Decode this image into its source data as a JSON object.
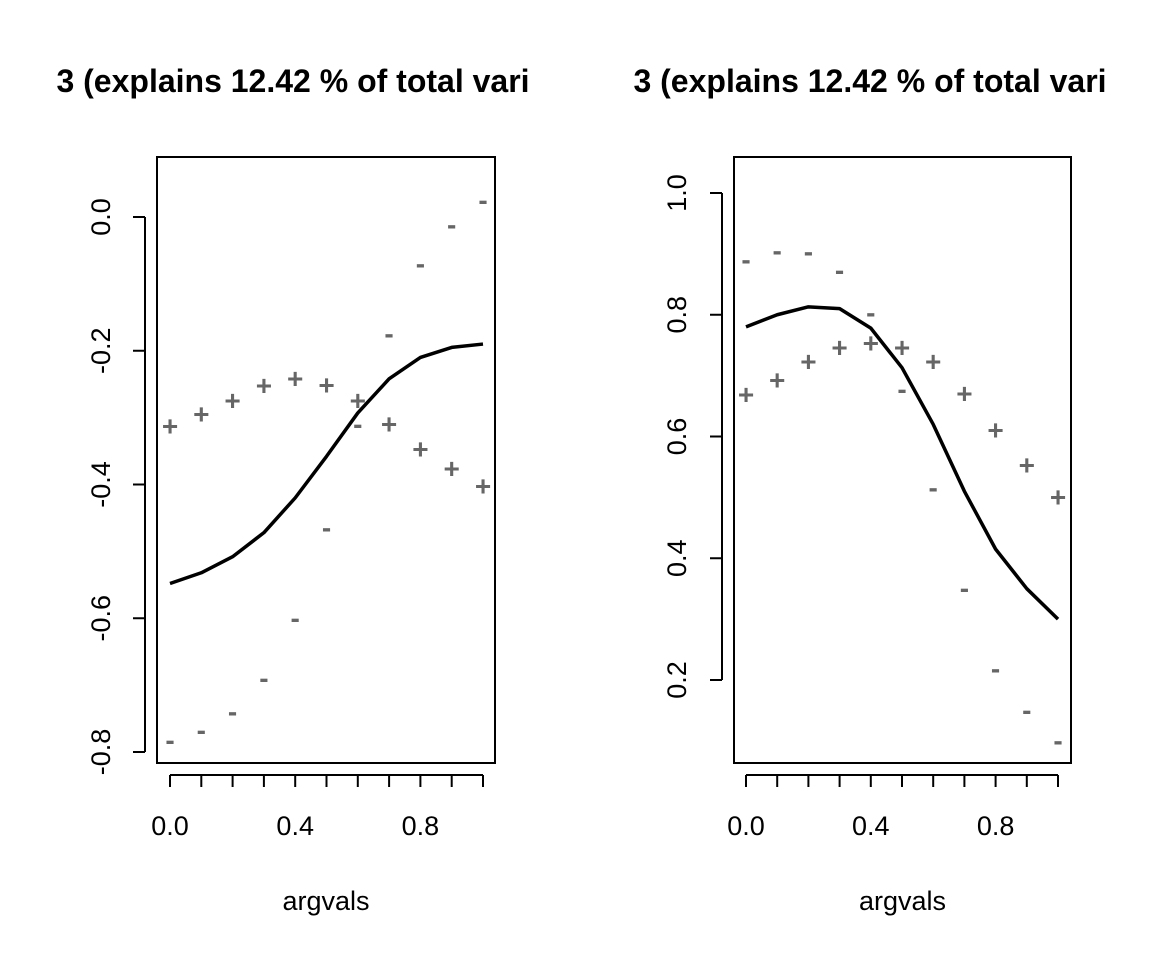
{
  "chart_data": [
    {
      "type": "line",
      "title": "3 (explains 12.42 % of total vari",
      "xlabel": "argvals",
      "ylabel": "",
      "xlim": [
        0,
        1
      ],
      "ylim": [
        -0.8,
        0.0
      ],
      "grid": false,
      "x_ticks": [
        "0.0",
        "0.4",
        "0.8"
      ],
      "x_tick_values": [
        0.0,
        0.4,
        0.8
      ],
      "x_minor_ticks": [
        0.0,
        0.1,
        0.2,
        0.3,
        0.4,
        0.5,
        0.6,
        0.7,
        0.8,
        0.9,
        1.0
      ],
      "y_ticks": [
        "-0.8",
        "-0.6",
        "-0.4",
        "-0.2",
        "0.0"
      ],
      "y_tick_values": [
        -0.8,
        -0.6,
        -0.4,
        -0.2,
        0.0
      ],
      "x": [
        0.0,
        0.1,
        0.2,
        0.3,
        0.4,
        0.5,
        0.6,
        0.7,
        0.8,
        0.9,
        1.0
      ],
      "series": [
        {
          "marker": "line",
          "color": "#000000",
          "values": [
            -0.548,
            -0.532,
            -0.508,
            -0.472,
            -0.42,
            -0.358,
            -0.293,
            -0.242,
            -0.21,
            -0.195,
            -0.19
          ]
        },
        {
          "marker": "+",
          "color": "#666666",
          "values": [
            -0.313,
            -0.295,
            -0.275,
            -0.253,
            -0.242,
            -0.252,
            -0.275,
            -0.31,
            -0.348,
            -0.377,
            -0.403
          ]
        },
        {
          "marker": "-",
          "color": "#666666",
          "values": [
            -0.783,
            -0.768,
            -0.74,
            -0.69,
            -0.6,
            -0.465,
            -0.31,
            -0.175,
            -0.07,
            -0.012,
            0.025
          ]
        }
      ]
    },
    {
      "type": "line",
      "title": "3 (explains 12.42 % of total vari",
      "xlabel": "argvals",
      "ylabel": "",
      "xlim": [
        0,
        1
      ],
      "ylim": [
        0.1,
        1.0
      ],
      "grid": false,
      "x_ticks": [
        "0.0",
        "0.4",
        "0.8"
      ],
      "x_tick_values": [
        0.0,
        0.4,
        0.8
      ],
      "x_minor_ticks": [
        0.0,
        0.1,
        0.2,
        0.3,
        0.4,
        0.5,
        0.6,
        0.7,
        0.8,
        0.9,
        1.0
      ],
      "y_ticks": [
        "0.2",
        "0.4",
        "0.6",
        "0.8",
        "1.0"
      ],
      "y_tick_values": [
        0.2,
        0.4,
        0.6,
        0.8,
        1.0
      ],
      "x": [
        0.0,
        0.1,
        0.2,
        0.3,
        0.4,
        0.5,
        0.6,
        0.7,
        0.8,
        0.9,
        1.0
      ],
      "series": [
        {
          "marker": "line",
          "color": "#000000",
          "values": [
            0.78,
            0.8,
            0.813,
            0.81,
            0.778,
            0.713,
            0.62,
            0.51,
            0.415,
            0.35,
            0.3
          ]
        },
        {
          "marker": "+",
          "color": "#666666",
          "values": [
            0.668,
            0.692,
            0.722,
            0.745,
            0.753,
            0.745,
            0.722,
            0.67,
            0.61,
            0.552,
            0.5
          ]
        },
        {
          "marker": "-",
          "color": "#666666",
          "values": [
            0.89,
            0.905,
            0.903,
            0.873,
            0.803,
            0.677,
            0.515,
            0.35,
            0.218,
            0.15,
            0.1
          ]
        }
      ]
    }
  ]
}
